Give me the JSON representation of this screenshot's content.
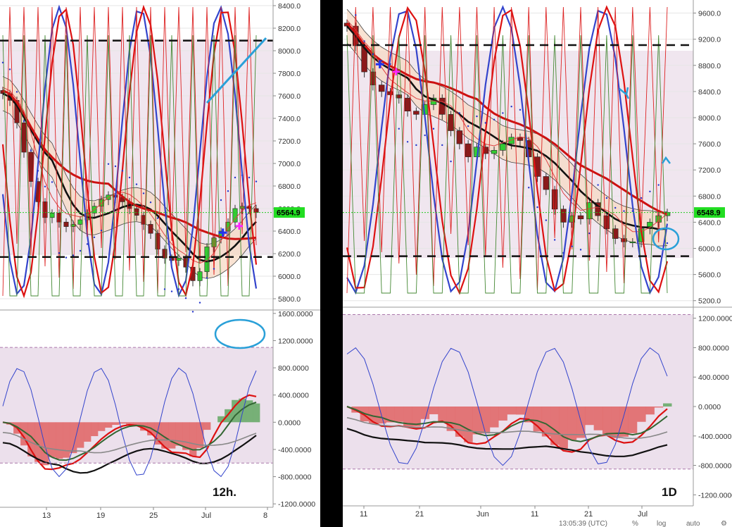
{
  "chart_data": [
    {
      "type": "candlestick",
      "timeframe_label": "12h.",
      "price_axis": {
        "ticks": [
          "8400.0",
          "8200.0",
          "8000.0",
          "7800.0",
          "7600.0",
          "7400.0",
          "7200.0",
          "7000.0",
          "6800.0",
          "6600.0",
          "6400.0",
          "6200.0",
          "6000.0",
          "5800.0"
        ],
        "ylim": [
          5700,
          8450
        ]
      },
      "last_price": "6564.9",
      "last_price_color": "#22dd22",
      "support_line": 6170,
      "resistance_line": 8090,
      "oscillator_axis": {
        "ticks": [
          "1600.0000",
          "1200.0000",
          "800.0000",
          "400.0000",
          "0.0000",
          "-400.0000",
          "-800.0000",
          "-1200.0000"
        ],
        "ylim": [
          -1250,
          1650
        ]
      },
      "oscillator_upper_band": 1100,
      "oscillator_lower_band": -600,
      "x_axis_ticks": [
        "13",
        "19",
        "25",
        "Jul",
        "8"
      ],
      "candles_close": [
        7620,
        7560,
        7360,
        7100,
        6840,
        6660,
        6520,
        6560,
        6480,
        6440,
        6460,
        6500,
        6560,
        6620,
        6680,
        6720,
        6700,
        6660,
        6600,
        6540,
        6460,
        6380,
        6240,
        6160,
        6140,
        6160,
        6080,
        5960,
        6040,
        6260,
        6340,
        6400,
        6480,
        6600,
        6620,
        6600,
        6565
      ],
      "annotations": [
        "blue cross",
        "magenta cross",
        "circled peak in oscillator",
        "rising trend line"
      ]
    },
    {
      "type": "candlestick",
      "timeframe_label": "1D",
      "price_axis": {
        "ticks": [
          "9600.0",
          "9200.0",
          "8800.0",
          "8400.0",
          "8000.0",
          "7600.0",
          "7200.0",
          "6800.0",
          "6400.0",
          "6000.0",
          "5600.0",
          "5200.0"
        ],
        "ylim": [
          5100,
          9800
        ]
      },
      "last_price": "6548.9",
      "last_price_color": "#22dd22",
      "support_line": 5880,
      "resistance_line": 9110,
      "oscillator_axis": {
        "ticks": [
          "1200.0000",
          "800.0000",
          "400.0000",
          "0.0000",
          "-400.0000",
          "-800.0000",
          "-1200.0000"
        ],
        "ylim": [
          -1350,
          1350
        ]
      },
      "oscillator_upper_band": 1250,
      "oscillator_lower_band": -850,
      "x_axis_ticks": [
        "11",
        "21",
        "Jun",
        "11",
        "21",
        "Jul"
      ],
      "candles_close": [
        9400,
        9100,
        8700,
        8500,
        8400,
        8350,
        8300,
        8100,
        8050,
        8200,
        8300,
        8050,
        7800,
        7600,
        7400,
        7550,
        7450,
        7500,
        7600,
        7700,
        7650,
        7400,
        7100,
        6900,
        6600,
        6400,
        6500,
        6450,
        6700,
        6500,
        6300,
        6150,
        6100,
        6100,
        6300,
        6400,
        6500,
        6550
      ],
      "annotations": [
        "blue cross",
        "magenta cross",
        "circled low",
        "blue arrow down",
        "blue arrow up"
      ]
    }
  ],
  "status_bar": {
    "clock": "13:05:39 (UTC)",
    "percent": "%",
    "log": "log",
    "auto": "auto"
  },
  "colors": {
    "bull_candle": "#33cc33",
    "bear_candle": "#8b1a1a",
    "ma_thick": "#cc1111",
    "ma_black": "#111111",
    "band_fill": "#f7d9c4",
    "stoch_blue": "#3344cc",
    "annotation_blue": "#2aa0d8"
  }
}
